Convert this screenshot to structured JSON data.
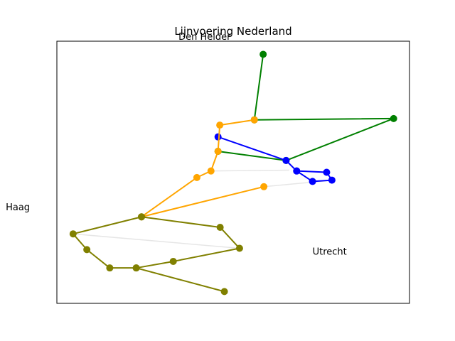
{
  "chart_data": {
    "type": "line",
    "title": "Lijnvoering Nederland",
    "xlabel": "",
    "ylabel": "",
    "xlim": [
      0,
      100
    ],
    "ylim": [
      0,
      100
    ],
    "grid": false,
    "legend": "none",
    "axis_ticks": false,
    "annotations": [
      {
        "text": "Den Helder",
        "x": 34.5,
        "y": 100.5
      },
      {
        "text": "Haag",
        "x": -14.5,
        "y": 35.5
      },
      {
        "text": "Utrecht",
        "x": 72.5,
        "y": 18.5
      }
    ],
    "connectors": {
      "color": "#e6e6e6",
      "segments": [
        [
          [
            44.2,
            50.5
          ],
          [
            65.9,
            50.8
          ]
        ],
        [
          [
            58.7,
            44.5
          ],
          [
            78.4,
            47.0
          ]
        ],
        [
          [
            4.6,
            26.5
          ],
          [
            51.8,
            21.0
          ]
        ]
      ]
    },
    "series": [
      {
        "color": "#008000",
        "x": [
          58.5,
          56.0,
          95.5,
          65.0,
          45.7
        ],
        "y": [
          95.0,
          70.0,
          70.5,
          54.5,
          58.0
        ]
      },
      {
        "color": "#0000ff",
        "x": [
          45.7,
          65.0,
          68.0,
          76.5,
          78.0,
          72.5,
          68.0
        ],
        "y": [
          63.5,
          54.5,
          50.5,
          50.0,
          47.0,
          46.5,
          50.5
        ]
      },
      {
        "color": "#ffa500",
        "x": [
          56.0,
          46.2,
          45.7,
          43.7,
          39.7,
          24.0,
          58.7
        ],
        "y": [
          70.0,
          68.0,
          58.0,
          50.5,
          48.0,
          33.0,
          44.5
        ]
      },
      {
        "color": "#808000",
        "x": [
          24.0,
          46.3,
          51.8,
          33.0,
          22.5,
          15.0,
          8.5,
          4.6,
          24.0
        ],
        "y": [
          33.0,
          29.0,
          21.0,
          16.0,
          13.5,
          13.5,
          20.5,
          26.5,
          33.0
        ]
      },
      {
        "color": "#808000",
        "x": [
          22.5,
          47.5
        ],
        "y": [
          13.5,
          4.5
        ]
      }
    ]
  }
}
